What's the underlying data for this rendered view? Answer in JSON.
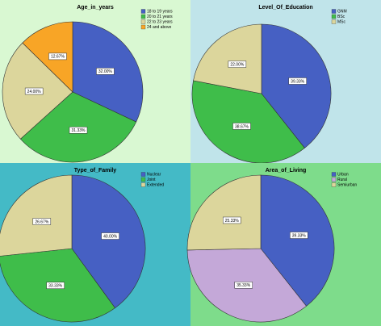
{
  "chart_data": [
    {
      "type": "pie",
      "title": "Age_in_years",
      "background": "#d9f8d2",
      "categories": [
        "18 to 19 years",
        "20 to 21 years",
        "22 to 23 years",
        "24 and above"
      ],
      "values": [
        32.0,
        31.33,
        24.0,
        12.67
      ],
      "value_labels": [
        "32.00%",
        "31.33%",
        "24.00%",
        "12.67%"
      ],
      "colors": [
        "#4660c3",
        "#3fbd4a",
        "#dcd69c",
        "#f8a526"
      ]
    },
    {
      "type": "pie",
      "title": "Level_Of_Education",
      "background": "#c0e4ea",
      "categories": [
        "GNM",
        "BSc",
        "MSc"
      ],
      "values": [
        39.33,
        38.67,
        22.0
      ],
      "value_labels": [
        "39.33%",
        "38.67%",
        "22.00%"
      ],
      "colors": [
        "#4660c3",
        "#3fbd4a",
        "#dcd69c"
      ]
    },
    {
      "type": "pie",
      "title": "Type_of_Family",
      "background": "#44bac6",
      "categories": [
        "Nuclear",
        "Joint",
        "Extended"
      ],
      "values": [
        40.0,
        33.33,
        26.67
      ],
      "value_labels": [
        "40.00%",
        "33.33%",
        "26.67%"
      ],
      "colors": [
        "#4660c3",
        "#3fbd4a",
        "#dcd69c"
      ]
    },
    {
      "type": "pie",
      "title": "Area_of_Living",
      "background": "#7edc8b",
      "categories": [
        "Urban",
        "Rural",
        "Semiurban"
      ],
      "values": [
        39.33,
        35.33,
        25.33
      ],
      "value_labels": [
        "39.33%",
        "35.33%",
        "25.33%"
      ],
      "colors": [
        "#4660c3",
        "#c4a8d8",
        "#dcd69c"
      ]
    }
  ]
}
